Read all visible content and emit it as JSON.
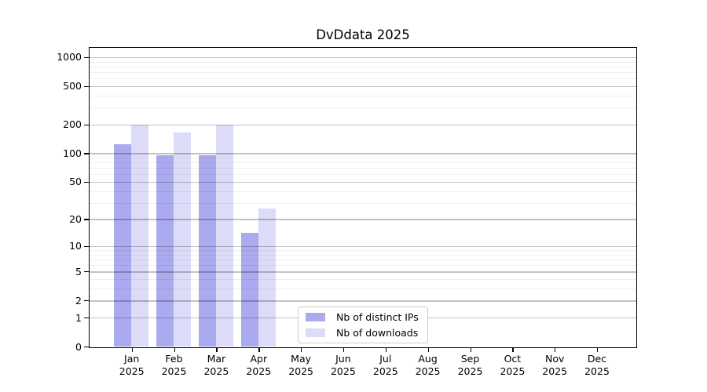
{
  "chart_data": {
    "type": "bar",
    "title": "DvDdata 2025",
    "categories": [
      "Jan",
      "Feb",
      "Mar",
      "Apr",
      "May",
      "Jun",
      "Jul",
      "Aug",
      "Sep",
      "Oct",
      "Nov",
      "Dec"
    ],
    "year_label": "2025",
    "series": [
      {
        "name": "Nb of distinct IPs",
        "color": "#aaaaee",
        "values": [
          125,
          95,
          95,
          14,
          0,
          0,
          0,
          0,
          0,
          0,
          0,
          0
        ]
      },
      {
        "name": "Nb of downloads",
        "color": "#dcdcf8",
        "values": [
          200,
          165,
          200,
          26,
          0,
          0,
          0,
          0,
          0,
          0,
          0,
          0
        ]
      }
    ],
    "y_scale": "log1p",
    "y_axis_ticks": [
      0,
      1,
      2,
      5,
      10,
      20,
      50,
      100,
      200,
      500,
      1000
    ],
    "y_minor_gridlines": [
      3,
      4,
      6,
      7,
      8,
      9,
      30,
      40,
      60,
      70,
      80,
      90,
      300,
      400,
      600,
      700,
      800,
      900
    ],
    "ylim": [
      0,
      1250
    ],
    "grid": true,
    "legend_position": "lower center"
  },
  "colors": {
    "background": "#ffffff",
    "axis": "#000000",
    "text": "#000000",
    "major_grid": "rgba(0,0,0,0.24)",
    "minor_grid": "rgba(0,0,0,0.06)",
    "legend_border": "#cccccc"
  }
}
